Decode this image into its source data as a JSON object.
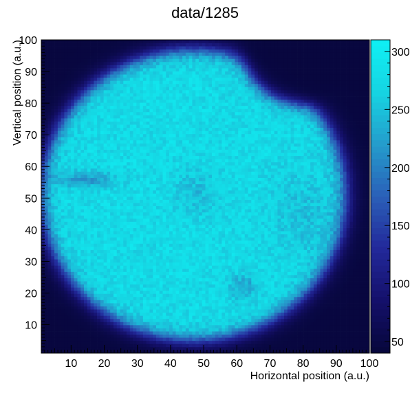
{
  "chart_data": {
    "type": "heatmap",
    "title": "data/1285",
    "xlabel": "Horizontal position (a.u.)",
    "ylabel": "Vertical position (a.u.)",
    "xlim": [
      1,
      100
    ],
    "ylim": [
      1,
      100
    ],
    "bins": [
      100,
      100
    ],
    "x_ticks": [
      10,
      20,
      30,
      40,
      50,
      60,
      70,
      80,
      90,
      100
    ],
    "y_ticks": [
      10,
      20,
      30,
      40,
      50,
      60,
      70,
      80,
      90,
      100
    ],
    "z_ticks": [
      50,
      100,
      150,
      200,
      250,
      300
    ],
    "z_range": [
      40,
      310
    ],
    "palette": [
      "#06063a",
      "#14106a",
      "#22289a",
      "#2a5fb8",
      "#249ccc",
      "#16d4e2",
      "#0ff0f4"
    ],
    "distribution": {
      "shape": "disc",
      "center": [
        47,
        51
      ],
      "radius": 46,
      "plateau_value": 275,
      "background_value": 45,
      "upper_right_notch": {
        "center": [
          80,
          98
        ],
        "radius": 18
      },
      "depressions": [
        {
          "center": [
            14,
            56
          ],
          "size": [
            9,
            2.5
          ],
          "value": 215
        },
        {
          "center": [
            62,
            22
          ],
          "size": [
            4,
            4
          ],
          "value": 225
        },
        {
          "center": [
            48,
            52
          ],
          "size": [
            7,
            7
          ],
          "value": 245
        },
        {
          "center": [
            80,
            45
          ],
          "size": [
            10,
            14
          ],
          "value": 250
        }
      ]
    }
  }
}
